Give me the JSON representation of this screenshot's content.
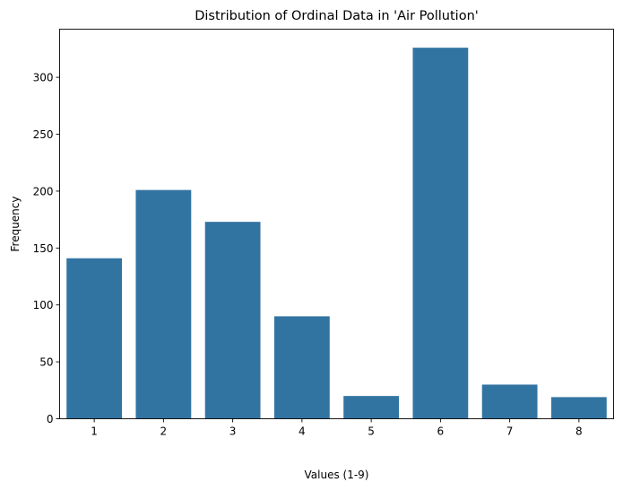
{
  "chart_data": {
    "type": "bar",
    "title": "Distribution of Ordinal Data in 'Air Pollution'",
    "xlabel": "Values (1-9)",
    "ylabel": "Frequency",
    "categories": [
      "1",
      "2",
      "3",
      "4",
      "5",
      "6",
      "7",
      "8"
    ],
    "values": [
      141,
      201,
      173,
      90,
      20,
      326,
      30,
      19
    ],
    "ylim": [
      0,
      342.3
    ],
    "yticks": [
      0,
      50,
      100,
      150,
      200,
      250,
      300
    ],
    "bar_color": "#3274a1",
    "grid": false,
    "legend": "none"
  }
}
